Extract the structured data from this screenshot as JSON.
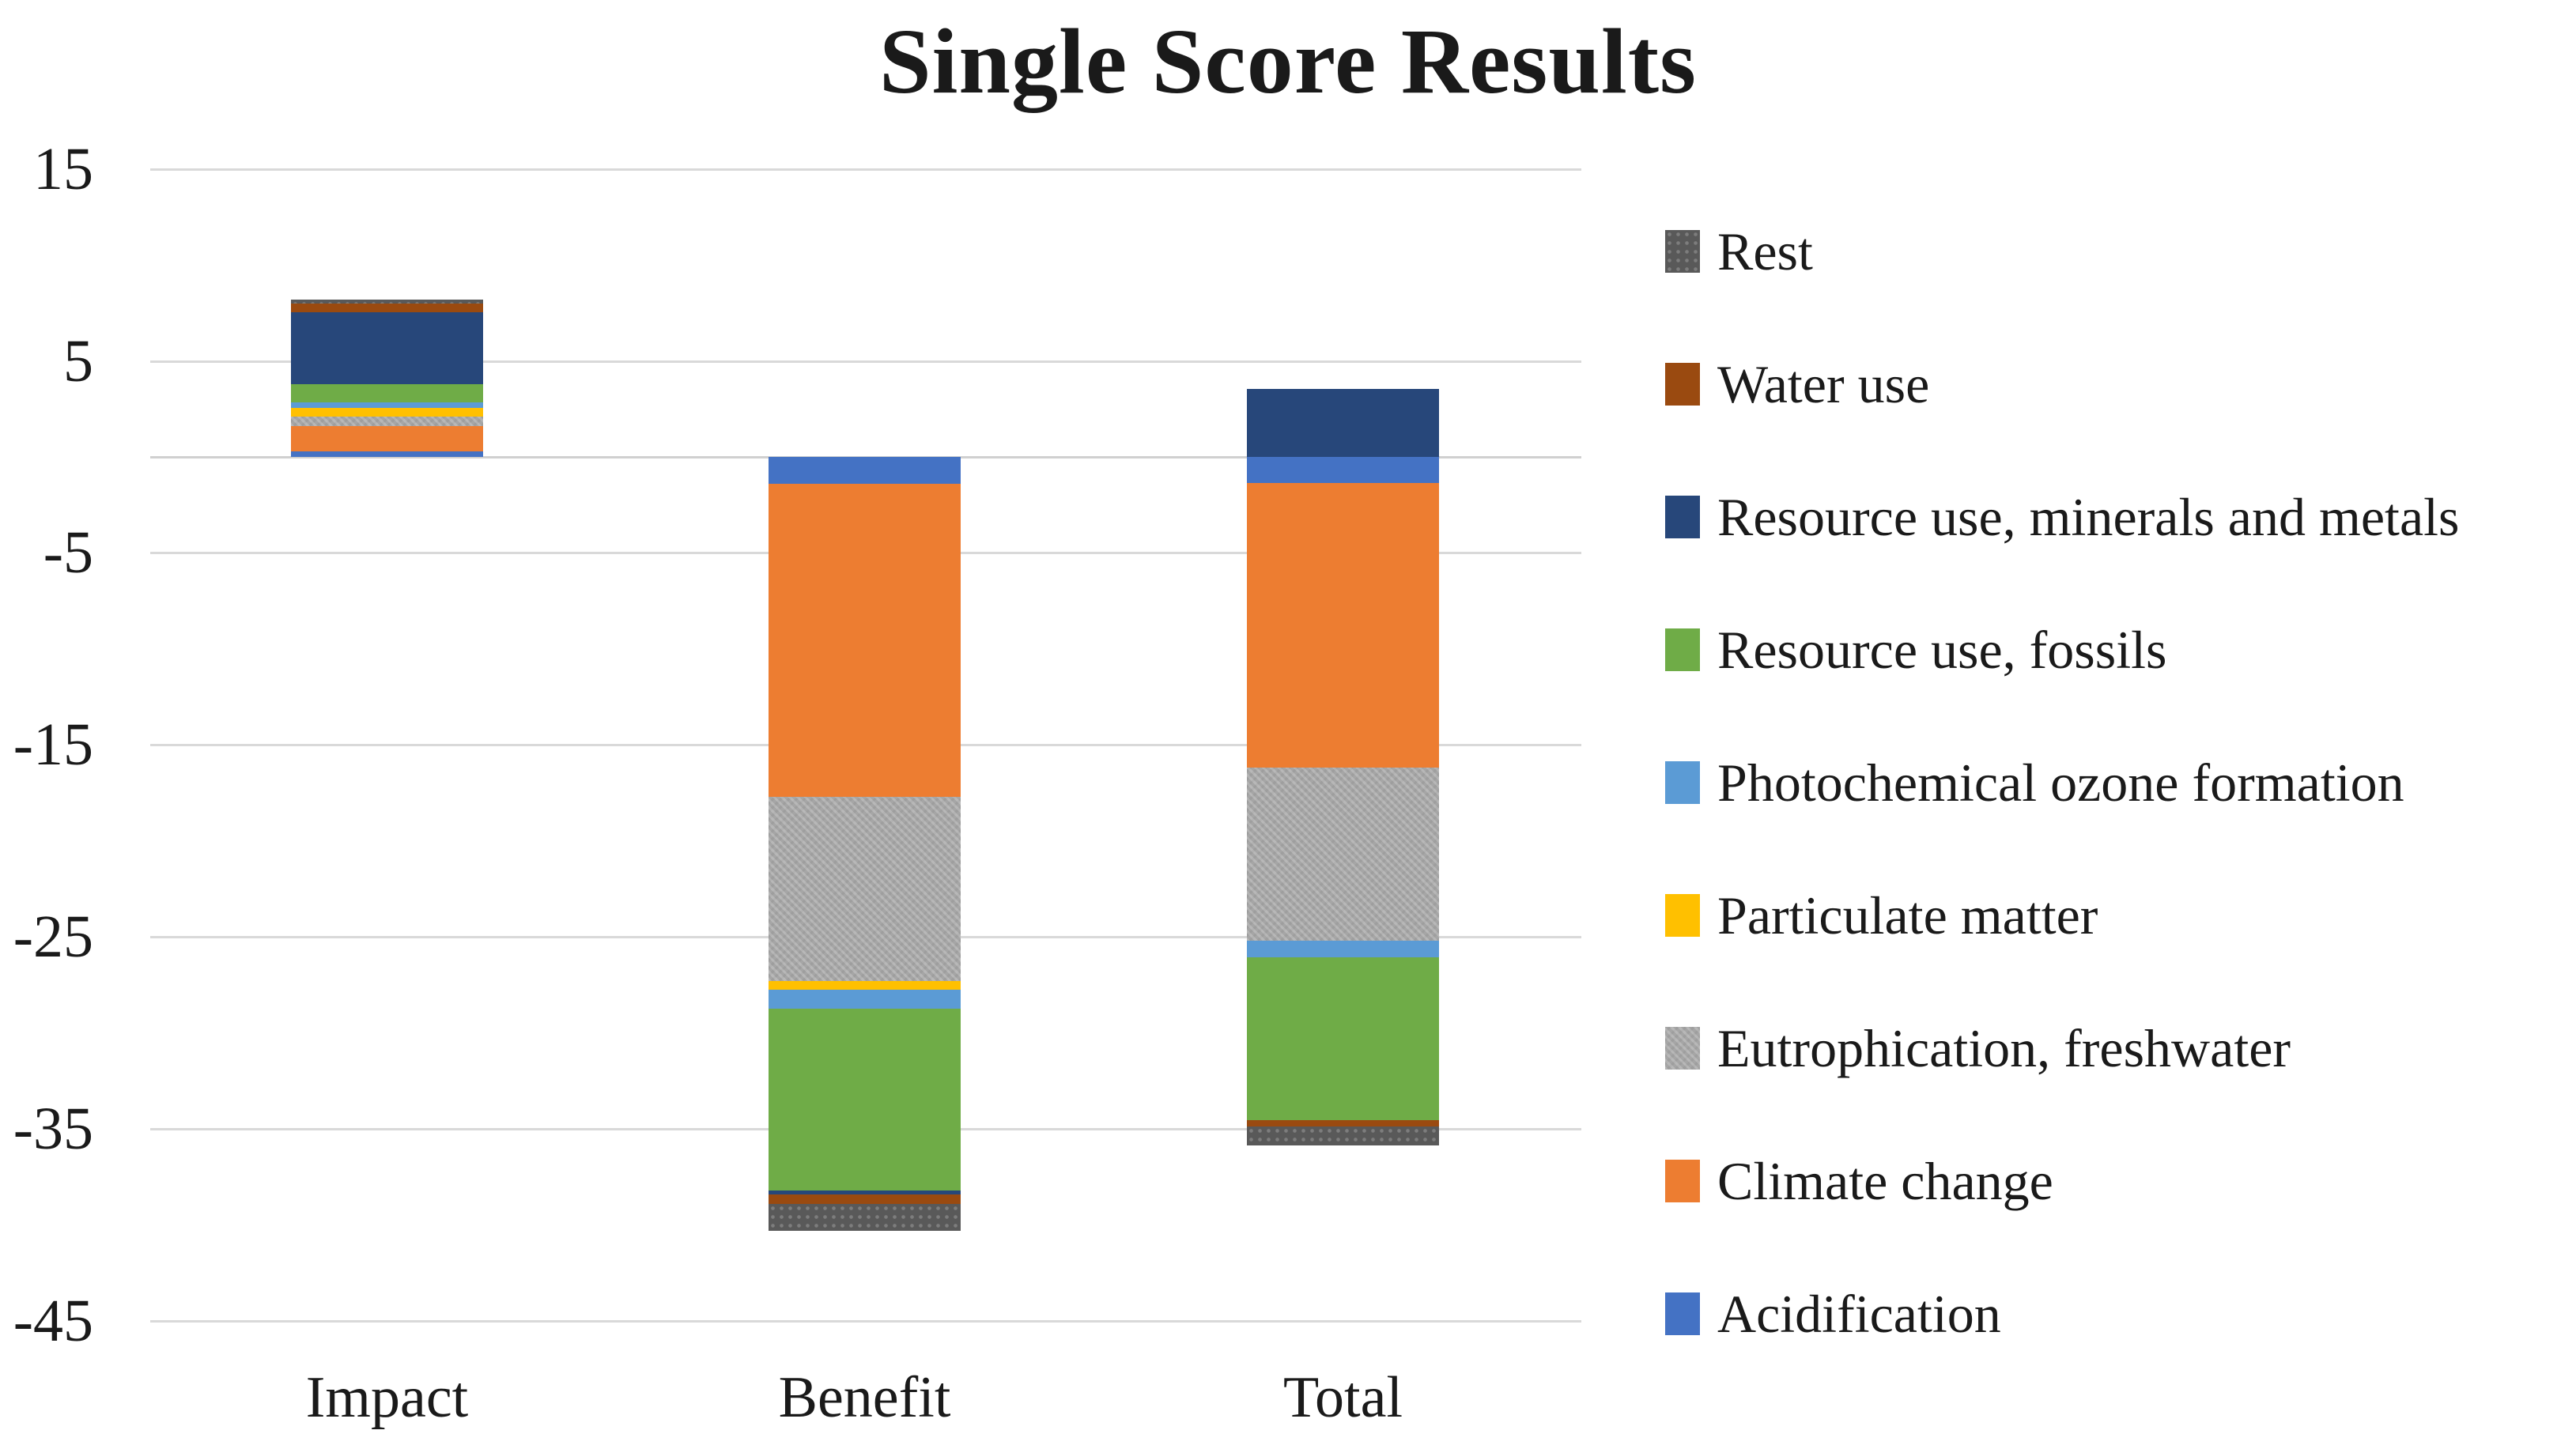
{
  "chart_data": {
    "type": "bar",
    "stacked": true,
    "title": "Single Score Results",
    "categories": [
      "Impact",
      "Benefit",
      "Total"
    ],
    "series": [
      {
        "name": "Rest",
        "color": "#595959",
        "pattern": "dots",
        "values": [
          0.2,
          -1.4,
          -1.0
        ]
      },
      {
        "name": "Water use",
        "color": "#9A4A10",
        "pattern": "solid",
        "values": [
          0.45,
          -0.5,
          -0.3
        ]
      },
      {
        "name": "Resource use, minerals and metals",
        "color": "#27477A",
        "pattern": "solid",
        "values": [
          3.75,
          -0.2,
          3.55
        ]
      },
      {
        "name": "Resource use, fossils",
        "color": "#6FAC47",
        "pattern": "solid",
        "values": [
          0.95,
          -9.45,
          -8.5
        ]
      },
      {
        "name": "Photochemical ozone formation",
        "color": "#5B9BD5",
        "pattern": "solid",
        "values": [
          0.3,
          -1.0,
          -0.85
        ]
      },
      {
        "name": "Particulate matter",
        "color": "#FFC000",
        "pattern": "solid",
        "values": [
          0.45,
          -0.45,
          0
        ]
      },
      {
        "name": "Eutrophication, freshwater",
        "color": "#A6A6A6",
        "pattern": "weave",
        "values": [
          0.5,
          -9.6,
          -9.0
        ]
      },
      {
        "name": "Climate change",
        "color": "#ED7D31",
        "pattern": "solid",
        "values": [
          1.3,
          -16.3,
          -14.85
        ]
      },
      {
        "name": "Acidification",
        "color": "#4472C4",
        "pattern": "solid",
        "values": [
          0.3,
          -1.4,
          -1.35
        ]
      }
    ],
    "stack_order_from_zero": [
      "Acidification",
      "Climate change",
      "Eutrophication, freshwater",
      "Particulate matter",
      "Photochemical ozone formation",
      "Resource use, fossils",
      "Resource use, minerals and metals",
      "Water use",
      "Rest"
    ],
    "y_axis": {
      "min": -45,
      "max": 15,
      "tick_values": [
        15,
        5,
        -5,
        -15,
        -25,
        -35,
        -45
      ],
      "gridlines": true,
      "zero_line": true
    },
    "legend_position": "right",
    "grid_color": "#D9D9D9",
    "background": "#FFFFFF",
    "bar_totals": {
      "Impact_top": 8.2,
      "Benefit_bottom": -40.3,
      "Total_top": 3.55,
      "Total_bottom": -35.85
    }
  }
}
